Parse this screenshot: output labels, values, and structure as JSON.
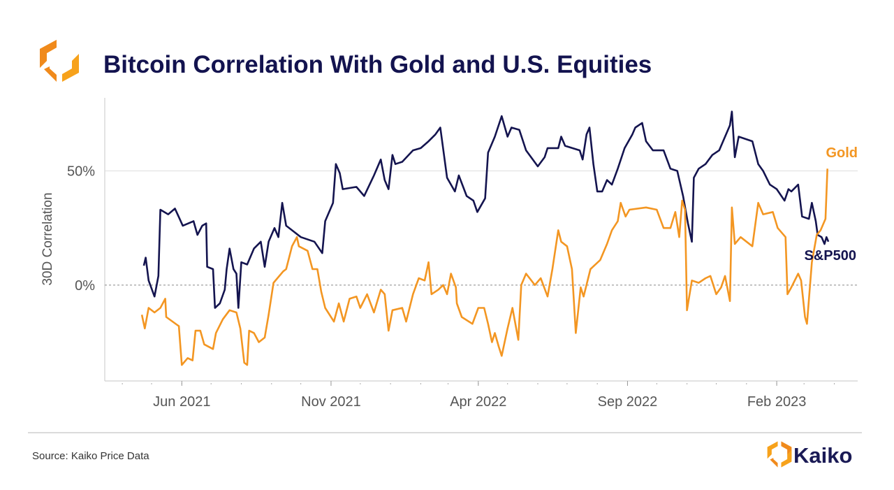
{
  "title": "Bitcoin Correlation With Gold and U.S. Equities",
  "source": "Source: Kaiko Price Data",
  "brand": {
    "name": "Kaiko",
    "logo_icon": "kaiko-hexagon-logo"
  },
  "colors": {
    "sp500": "#14144f",
    "gold": "#f39622",
    "title": "#13134f"
  },
  "chart_data": {
    "type": "line",
    "title": "Bitcoin Correlation With Gold and U.S. Equities",
    "xlabel": "",
    "ylabel": "30D Correlation",
    "xlim": [
      "2021-03-14",
      "2023-04-25"
    ],
    "ylim": [
      -42,
      82
    ],
    "x_ticks": [
      {
        "date": "2021-06-01",
        "label": "Jun 2021"
      },
      {
        "date": "2021-11-01",
        "label": "Nov 2021"
      },
      {
        "date": "2022-04-01",
        "label": "Apr 2022"
      },
      {
        "date": "2022-09-01",
        "label": "Sep 2022"
      },
      {
        "date": "2023-02-01",
        "label": "Feb 2023"
      }
    ],
    "y_ticks": [
      {
        "value": 0,
        "label": "0%",
        "style": "dashed"
      },
      {
        "value": 50,
        "label": "50%",
        "style": "solid"
      }
    ],
    "grid": true,
    "legend": "inline labels at line ends",
    "series": [
      {
        "name": "S&P500",
        "color": "#14144f",
        "points": [
          [
            "2021-04-23",
            8.5
          ],
          [
            "2021-04-25",
            12
          ],
          [
            "2021-04-28",
            2
          ],
          [
            "2021-05-04",
            -5
          ],
          [
            "2021-05-08",
            4
          ],
          [
            "2021-05-10",
            33
          ],
          [
            "2021-05-18",
            31
          ],
          [
            "2021-05-25",
            33.5
          ],
          [
            "2021-06-02",
            26
          ],
          [
            "2021-06-13",
            28
          ],
          [
            "2021-06-17",
            22
          ],
          [
            "2021-06-22",
            26
          ],
          [
            "2021-06-26",
            27
          ],
          [
            "2021-06-27",
            8
          ],
          [
            "2021-07-03",
            7
          ],
          [
            "2021-07-05",
            -10
          ],
          [
            "2021-07-10",
            -8
          ],
          [
            "2021-07-15",
            -2
          ],
          [
            "2021-07-17",
            7
          ],
          [
            "2021-07-20",
            16
          ],
          [
            "2021-07-24",
            7
          ],
          [
            "2021-07-27",
            5
          ],
          [
            "2021-07-29",
            -10
          ],
          [
            "2021-08-01",
            10
          ],
          [
            "2021-08-07",
            9
          ],
          [
            "2021-08-14",
            16
          ],
          [
            "2021-08-21",
            19
          ],
          [
            "2021-08-25",
            8
          ],
          [
            "2021-08-29",
            19
          ],
          [
            "2021-09-04",
            25
          ],
          [
            "2021-09-08",
            21
          ],
          [
            "2021-09-12",
            36
          ],
          [
            "2021-09-16",
            26
          ],
          [
            "2021-09-22",
            24
          ],
          [
            "2021-10-01",
            21
          ],
          [
            "2021-10-15",
            19
          ],
          [
            "2021-10-23",
            14
          ],
          [
            "2021-10-26",
            28
          ],
          [
            "2021-11-03",
            36
          ],
          [
            "2021-11-06",
            53
          ],
          [
            "2021-11-10",
            49
          ],
          [
            "2021-11-13",
            42
          ],
          [
            "2021-11-27",
            43
          ],
          [
            "2021-12-05",
            39
          ],
          [
            "2021-12-15",
            48
          ],
          [
            "2021-12-22",
            55
          ],
          [
            "2021-12-26",
            46
          ],
          [
            "2021-12-30",
            42
          ],
          [
            "2022-01-03",
            57
          ],
          [
            "2022-01-06",
            53
          ],
          [
            "2022-01-13",
            54
          ],
          [
            "2022-01-24",
            59
          ],
          [
            "2022-02-01",
            60
          ],
          [
            "2022-02-09",
            63
          ],
          [
            "2022-02-16",
            66
          ],
          [
            "2022-02-21",
            69
          ],
          [
            "2022-02-28",
            47
          ],
          [
            "2022-03-08",
            41
          ],
          [
            "2022-03-12",
            48
          ],
          [
            "2022-03-20",
            39
          ],
          [
            "2022-03-27",
            37
          ],
          [
            "2022-03-31",
            32
          ],
          [
            "2022-04-08",
            38
          ],
          [
            "2022-04-11",
            58
          ],
          [
            "2022-04-18",
            65
          ],
          [
            "2022-04-25",
            74
          ],
          [
            "2022-05-01",
            65
          ],
          [
            "2022-05-05",
            69
          ],
          [
            "2022-05-13",
            68
          ],
          [
            "2022-05-20",
            59
          ],
          [
            "2022-06-01",
            52
          ],
          [
            "2022-06-08",
            56
          ],
          [
            "2022-06-11",
            60
          ],
          [
            "2022-06-22",
            60
          ],
          [
            "2022-06-25",
            65
          ],
          [
            "2022-06-29",
            61
          ],
          [
            "2022-07-14",
            59
          ],
          [
            "2022-07-17",
            55
          ],
          [
            "2022-07-21",
            66
          ],
          [
            "2022-07-24",
            69
          ],
          [
            "2022-07-28",
            53
          ],
          [
            "2022-08-01",
            41
          ],
          [
            "2022-08-06",
            41
          ],
          [
            "2022-08-11",
            46
          ],
          [
            "2022-08-16",
            44
          ],
          [
            "2022-08-22",
            51
          ],
          [
            "2022-08-29",
            60
          ],
          [
            "2022-09-06",
            66
          ],
          [
            "2022-09-09",
            69
          ],
          [
            "2022-09-16",
            71
          ],
          [
            "2022-09-20",
            63
          ],
          [
            "2022-09-27",
            59
          ],
          [
            "2022-10-08",
            59
          ],
          [
            "2022-10-15",
            51
          ],
          [
            "2022-10-22",
            50
          ],
          [
            "2022-10-28",
            39
          ],
          [
            "2022-11-02",
            27
          ],
          [
            "2022-11-06",
            19
          ],
          [
            "2022-11-08",
            47
          ],
          [
            "2022-11-13",
            51
          ],
          [
            "2022-11-20",
            53
          ],
          [
            "2022-11-27",
            57
          ],
          [
            "2022-12-04",
            59
          ],
          [
            "2022-12-15",
            70
          ],
          [
            "2022-12-17",
            76
          ],
          [
            "2022-12-20",
            56
          ],
          [
            "2022-12-24",
            65
          ],
          [
            "2023-01-07",
            63
          ],
          [
            "2023-01-13",
            53
          ],
          [
            "2023-01-18",
            50
          ],
          [
            "2023-01-25",
            44
          ],
          [
            "2023-02-01",
            42
          ],
          [
            "2023-02-09",
            37
          ],
          [
            "2023-02-13",
            42
          ],
          [
            "2023-02-16",
            41
          ],
          [
            "2023-02-23",
            44
          ],
          [
            "2023-02-27",
            30
          ],
          [
            "2023-03-06",
            29
          ],
          [
            "2023-03-09",
            36
          ],
          [
            "2023-03-13",
            28
          ],
          [
            "2023-03-15",
            22
          ],
          [
            "2023-03-19",
            21
          ],
          [
            "2023-03-22",
            18
          ],
          [
            "2023-03-24",
            21
          ],
          [
            "2023-03-26",
            19
          ]
        ]
      },
      {
        "name": "Gold",
        "color": "#f39622",
        "points": [
          [
            "2021-04-21",
            -13
          ],
          [
            "2021-04-24",
            -19
          ],
          [
            "2021-04-28",
            -10
          ],
          [
            "2021-05-04",
            -12
          ],
          [
            "2021-05-10",
            -10
          ],
          [
            "2021-05-15",
            -6
          ],
          [
            "2021-05-16",
            -14
          ],
          [
            "2021-05-29",
            -18
          ],
          [
            "2021-06-01",
            -35
          ],
          [
            "2021-06-07",
            -32
          ],
          [
            "2021-06-12",
            -33
          ],
          [
            "2021-06-15",
            -20
          ],
          [
            "2021-06-20",
            -20
          ],
          [
            "2021-06-24",
            -26
          ],
          [
            "2021-07-03",
            -28
          ],
          [
            "2021-07-06",
            -21
          ],
          [
            "2021-07-13",
            -15
          ],
          [
            "2021-07-20",
            -11
          ],
          [
            "2021-07-27",
            -12
          ],
          [
            "2021-07-31",
            -19
          ],
          [
            "2021-08-04",
            -34
          ],
          [
            "2021-08-07",
            -35
          ],
          [
            "2021-08-09",
            -20
          ],
          [
            "2021-08-14",
            -21
          ],
          [
            "2021-08-19",
            -25
          ],
          [
            "2021-08-25",
            -23
          ],
          [
            "2021-08-29",
            -13
          ],
          [
            "2021-09-03",
            1
          ],
          [
            "2021-09-13",
            6
          ],
          [
            "2021-09-16",
            7
          ],
          [
            "2021-09-22",
            17
          ],
          [
            "2021-09-27",
            21
          ],
          [
            "2021-09-29",
            17
          ],
          [
            "2021-10-08",
            15
          ],
          [
            "2021-10-13",
            7
          ],
          [
            "2021-10-18",
            7
          ],
          [
            "2021-10-22",
            -3
          ],
          [
            "2021-10-26",
            -10
          ],
          [
            "2021-11-04",
            -16
          ],
          [
            "2021-11-09",
            -8
          ],
          [
            "2021-11-14",
            -16
          ],
          [
            "2021-11-20",
            -6
          ],
          [
            "2021-11-27",
            -5
          ],
          [
            "2021-12-01",
            -10
          ],
          [
            "2021-12-08",
            -4
          ],
          [
            "2021-12-15",
            -12
          ],
          [
            "2021-12-22",
            -2
          ],
          [
            "2021-12-26",
            -4
          ],
          [
            "2021-12-30",
            -20
          ],
          [
            "2022-01-03",
            -11
          ],
          [
            "2022-01-13",
            -10
          ],
          [
            "2022-01-17",
            -16
          ],
          [
            "2022-01-24",
            -4
          ],
          [
            "2022-01-30",
            3
          ],
          [
            "2022-02-05",
            2
          ],
          [
            "2022-02-09",
            10
          ],
          [
            "2022-02-12",
            -4
          ],
          [
            "2022-02-19",
            -2
          ],
          [
            "2022-02-24",
            0
          ],
          [
            "2022-02-28",
            -4
          ],
          [
            "2022-03-04",
            5
          ],
          [
            "2022-03-09",
            -1
          ],
          [
            "2022-03-10",
            -8
          ],
          [
            "2022-03-15",
            -14
          ],
          [
            "2022-03-26",
            -17
          ],
          [
            "2022-04-01",
            -10
          ],
          [
            "2022-04-07",
            -10
          ],
          [
            "2022-04-11",
            -17
          ],
          [
            "2022-04-15",
            -25
          ],
          [
            "2022-04-18",
            -21
          ],
          [
            "2022-04-22",
            -27
          ],
          [
            "2022-04-25",
            -31
          ],
          [
            "2022-05-01",
            -19
          ],
          [
            "2022-05-06",
            -10
          ],
          [
            "2022-05-12",
            -24
          ],
          [
            "2022-05-15",
            0
          ],
          [
            "2022-05-20",
            5
          ],
          [
            "2022-05-29",
            0
          ],
          [
            "2022-06-04",
            3
          ],
          [
            "2022-06-11",
            -5
          ],
          [
            "2022-06-16",
            7
          ],
          [
            "2022-06-22",
            24
          ],
          [
            "2022-06-25",
            19
          ],
          [
            "2022-07-01",
            17
          ],
          [
            "2022-07-06",
            7
          ],
          [
            "2022-07-10",
            -21
          ],
          [
            "2022-07-15",
            -1
          ],
          [
            "2022-07-18",
            -5
          ],
          [
            "2022-07-25",
            7
          ],
          [
            "2022-08-04",
            11
          ],
          [
            "2022-08-11",
            18
          ],
          [
            "2022-08-16",
            24
          ],
          [
            "2022-08-22",
            28
          ],
          [
            "2022-08-25",
            36
          ],
          [
            "2022-08-30",
            30
          ],
          [
            "2022-09-03",
            33
          ],
          [
            "2022-09-20",
            34
          ],
          [
            "2022-10-01",
            33
          ],
          [
            "2022-10-08",
            25
          ],
          [
            "2022-10-15",
            25
          ],
          [
            "2022-10-20",
            32
          ],
          [
            "2022-10-24",
            21
          ],
          [
            "2022-10-27",
            37
          ],
          [
            "2022-10-30",
            33
          ],
          [
            "2022-11-01",
            -11
          ],
          [
            "2022-11-06",
            2
          ],
          [
            "2022-11-13",
            1
          ],
          [
            "2022-11-20",
            3
          ],
          [
            "2022-11-25",
            4
          ],
          [
            "2022-12-01",
            -4
          ],
          [
            "2022-12-06",
            -1
          ],
          [
            "2022-12-10",
            4
          ],
          [
            "2022-12-15",
            -7
          ],
          [
            "2022-12-17",
            34
          ],
          [
            "2022-12-20",
            18
          ],
          [
            "2022-12-26",
            21
          ],
          [
            "2023-01-07",
            17
          ],
          [
            "2023-01-13",
            36
          ],
          [
            "2023-01-18",
            31
          ],
          [
            "2023-01-28",
            32
          ],
          [
            "2023-02-02",
            25
          ],
          [
            "2023-02-10",
            21
          ],
          [
            "2023-02-12",
            -4
          ],
          [
            "2023-02-16",
            -1
          ],
          [
            "2023-02-23",
            5
          ],
          [
            "2023-02-26",
            2
          ],
          [
            "2023-03-02",
            -14
          ],
          [
            "2023-03-04",
            -17
          ],
          [
            "2023-03-09",
            10
          ],
          [
            "2023-03-14",
            22
          ],
          [
            "2023-03-18",
            24
          ],
          [
            "2023-03-23",
            29
          ],
          [
            "2023-03-25",
            51
          ]
        ]
      }
    ]
  }
}
